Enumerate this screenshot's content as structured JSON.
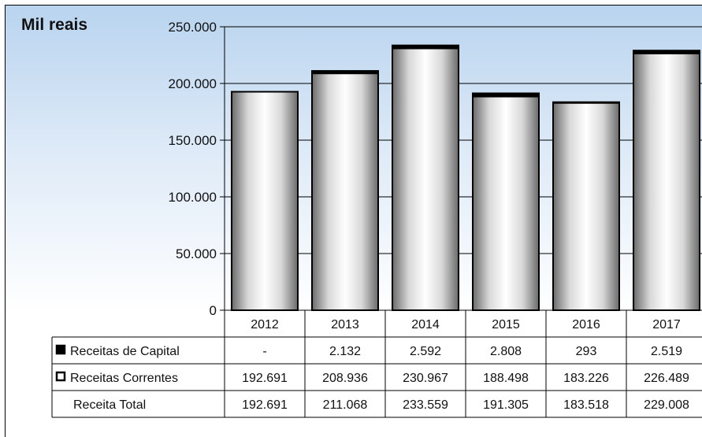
{
  "unit_label": "Mil reais",
  "chart_data": {
    "type": "bar",
    "ylabel": "Mil reais",
    "ylim": [
      0,
      250000
    ],
    "yticks": [
      "0",
      "50.000",
      "100.000",
      "150.000",
      "200.000",
      "250.000"
    ],
    "categories": [
      "2012",
      "2013",
      "2014",
      "2015",
      "2016",
      "2017"
    ],
    "series": [
      {
        "name": "Receitas de Capital",
        "values": [
          0,
          2132,
          2592,
          2808,
          293,
          2519
        ],
        "labels": [
          "-",
          "2.132",
          "2.592",
          "2.808",
          "293",
          "2.519"
        ],
        "color": "#000000"
      },
      {
        "name": "Receitas Correntes",
        "values": [
          192691,
          208936,
          230967,
          188498,
          183226,
          226489
        ],
        "labels": [
          "192.691",
          "208.936",
          "230.967",
          "188.498",
          "183.226",
          "226.489"
        ],
        "color": "#ffffff"
      }
    ],
    "totals": {
      "name": "Receita Total",
      "values": [
        192691,
        211068,
        233559,
        191305,
        183518,
        229008
      ],
      "labels": [
        "192.691",
        "211.068",
        "233.559",
        "191.305",
        "183.518",
        "229.008"
      ]
    },
    "stacked": true,
    "grid": true,
    "legend": "data-table"
  }
}
